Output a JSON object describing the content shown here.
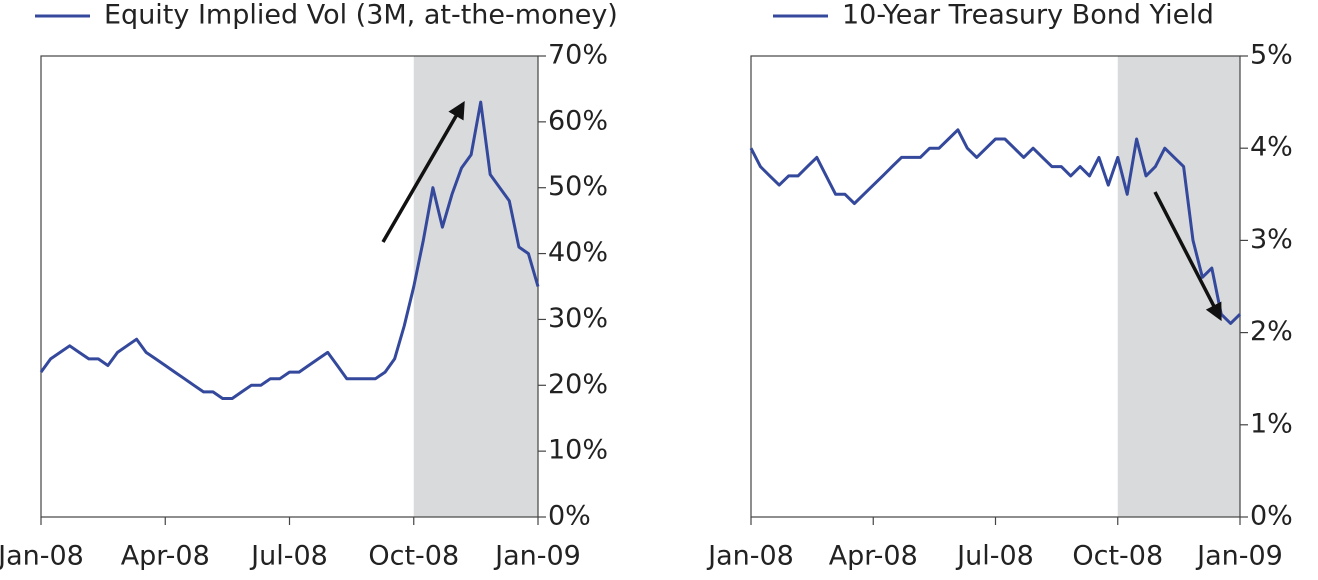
{
  "chart_data": [
    {
      "type": "line",
      "categories": [
        "Jan-08",
        null,
        null,
        null,
        null,
        null,
        null,
        null,
        null,
        null,
        null,
        null,
        null,
        "Apr-08",
        null,
        null,
        null,
        null,
        null,
        null,
        null,
        null,
        null,
        null,
        null,
        null,
        "Jul-08",
        null,
        null,
        null,
        null,
        null,
        null,
        null,
        null,
        null,
        null,
        null,
        null,
        "Oct-08",
        null,
        null,
        null,
        null,
        null,
        null,
        null,
        null,
        null,
        null,
        null,
        null,
        "Jan-09"
      ],
      "series": [
        {
          "name": "Equity Implied Vol (3M, at-the-money)",
          "color": "#34489c",
          "values": [
            22,
            24,
            25,
            26,
            25,
            24,
            24,
            23,
            25,
            26,
            27,
            25,
            24,
            23,
            22,
            21,
            20,
            19,
            19,
            18,
            18,
            19,
            20,
            20,
            21,
            21,
            22,
            22,
            23,
            24,
            25,
            23,
            21,
            21,
            21,
            21,
            22,
            24,
            29,
            35,
            42,
            50,
            44,
            49,
            53,
            55,
            63,
            52,
            50,
            48,
            41,
            40,
            35
          ]
        }
      ],
      "ylim": [
        0,
        70
      ],
      "yticks": [
        {
          "value": 0,
          "label": "0%"
        },
        {
          "value": 10,
          "label": "10%"
        },
        {
          "value": 20,
          "label": "20%"
        },
        {
          "value": 30,
          "label": "30%"
        },
        {
          "value": 40,
          "label": "40%"
        },
        {
          "value": 50,
          "label": "50%"
        },
        {
          "value": 60,
          "label": "60%"
        },
        {
          "value": 70,
          "label": "70%"
        }
      ],
      "shade_from": "Oct-08",
      "shade_to": "Jan-09",
      "shade_color": "#d9dadc",
      "y_axis_side": "right"
    },
    {
      "type": "line",
      "categories": [
        "Jan-08",
        null,
        null,
        null,
        null,
        null,
        null,
        null,
        null,
        null,
        null,
        null,
        null,
        "Apr-08",
        null,
        null,
        null,
        null,
        null,
        null,
        null,
        null,
        null,
        null,
        null,
        null,
        "Jul-08",
        null,
        null,
        null,
        null,
        null,
        null,
        null,
        null,
        null,
        null,
        null,
        null,
        "Oct-08",
        null,
        null,
        null,
        null,
        null,
        null,
        null,
        null,
        null,
        null,
        null,
        null,
        "Jan-09"
      ],
      "series": [
        {
          "name": "10-Year Treasury Bond Yield",
          "color": "#34489c",
          "values": [
            4.0,
            3.8,
            3.7,
            3.6,
            3.7,
            3.7,
            3.8,
            3.9,
            3.7,
            3.5,
            3.5,
            3.4,
            3.5,
            3.6,
            3.7,
            3.8,
            3.9,
            3.9,
            3.9,
            4.0,
            4.0,
            4.1,
            4.2,
            4.0,
            3.9,
            4.0,
            4.1,
            4.1,
            4.0,
            3.9,
            4.0,
            3.9,
            3.8,
            3.8,
            3.7,
            3.8,
            3.7,
            3.9,
            3.6,
            3.9,
            3.5,
            4.1,
            3.7,
            3.8,
            4.0,
            3.9,
            3.8,
            3.0,
            2.6,
            2.7,
            2.2,
            2.1,
            2.2
          ]
        }
      ],
      "ylim": [
        0,
        5
      ],
      "yticks": [
        {
          "value": 0,
          "label": "0%"
        },
        {
          "value": 1,
          "label": "1%"
        },
        {
          "value": 2,
          "label": "2%"
        },
        {
          "value": 3,
          "label": "3%"
        },
        {
          "value": 4,
          "label": "4%"
        },
        {
          "value": 5,
          "label": "5%"
        }
      ],
      "shade_from": "Oct-08",
      "shade_to": "Jan-09",
      "shade_color": "#d9dadc",
      "y_axis_side": "right"
    }
  ]
}
